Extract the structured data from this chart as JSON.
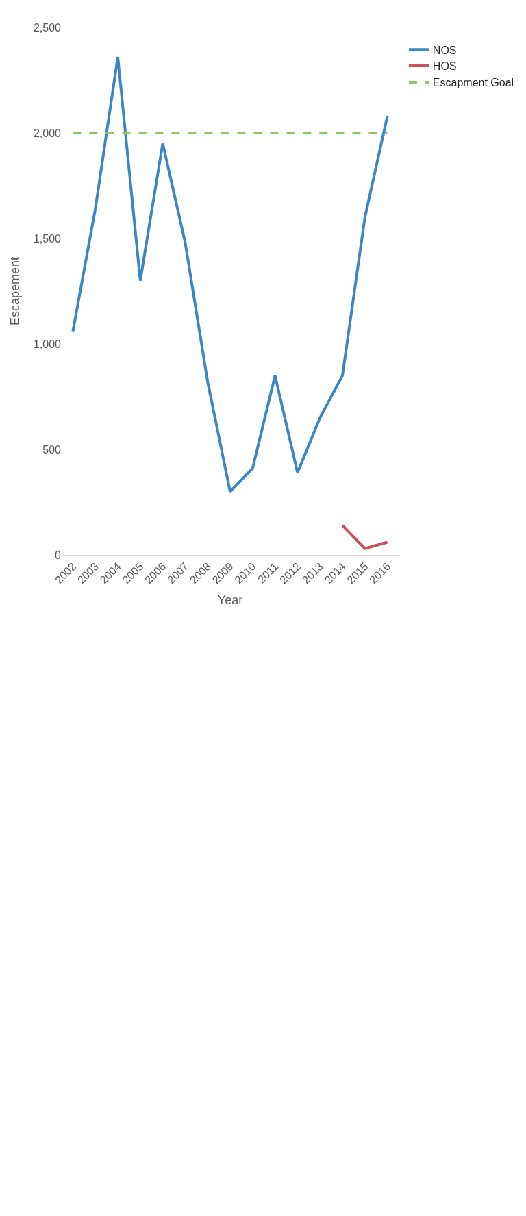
{
  "chart_data": {
    "type": "line",
    "xlabel": "Year",
    "ylabel": "Escapement",
    "categories": [
      "2002",
      "2003",
      "2004",
      "2005",
      "2006",
      "2007",
      "2008",
      "2009",
      "2010",
      "2011",
      "2012",
      "2013",
      "2014",
      "2015",
      "2016"
    ],
    "series": [
      {
        "name": "NOS",
        "color": "#3a87c8",
        "values": [
          1060,
          1640,
          2360,
          1300,
          1950,
          1480,
          820,
          300,
          410,
          850,
          390,
          650,
          850,
          1600,
          2080
        ]
      },
      {
        "name": "HOS",
        "color": "#c9515c",
        "values": [
          null,
          null,
          null,
          null,
          null,
          null,
          null,
          null,
          null,
          null,
          null,
          null,
          140,
          30,
          60
        ]
      },
      {
        "name": "Escapment Goal",
        "color": "#8cc56a",
        "line_style": "dashed",
        "values": [
          2000,
          2000,
          2000,
          2000,
          2000,
          2000,
          2000,
          2000,
          2000,
          2000,
          2000,
          2000,
          2000,
          2000,
          2000
        ]
      }
    ],
    "ylim": [
      0,
      2500
    ],
    "yticks": [
      {
        "value": 0,
        "label": "0"
      },
      {
        "value": 500,
        "label": "500"
      },
      {
        "value": 1000,
        "label": "1,000"
      },
      {
        "value": 1500,
        "label": "1,500"
      },
      {
        "value": 2000,
        "label": "2,000"
      },
      {
        "value": 2500,
        "label": "2,500"
      }
    ],
    "grid": false,
    "legend": "right",
    "marker": "none"
  }
}
